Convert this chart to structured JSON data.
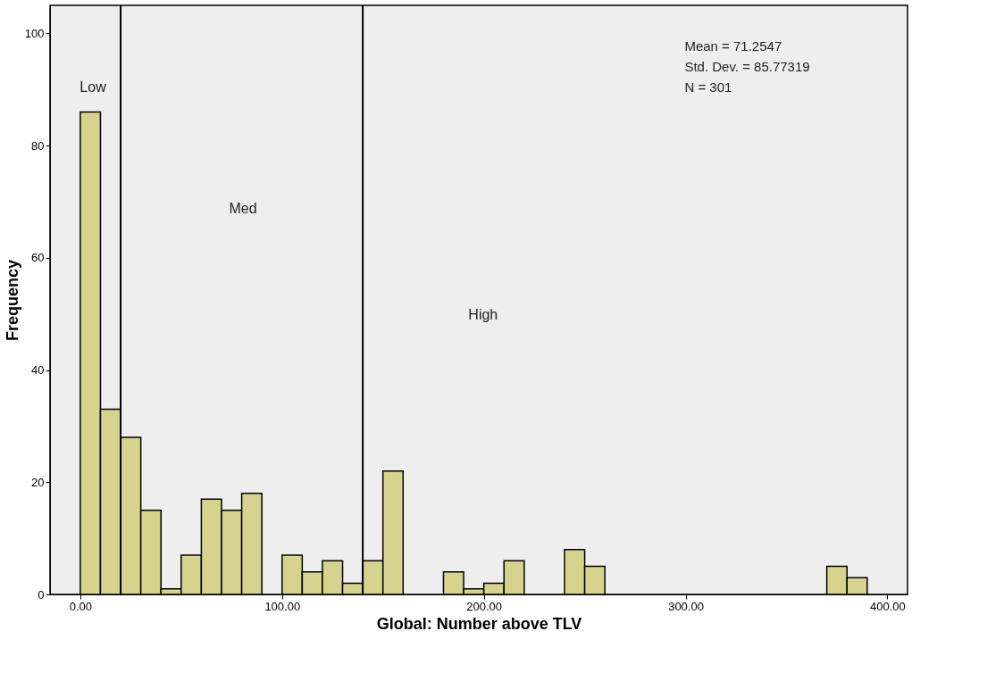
{
  "chart_data": {
    "type": "histogram",
    "xlabel": "Global: Number above TLV",
    "ylabel": "Frequency",
    "bins": [
      0,
      10,
      20,
      30,
      40,
      50,
      60,
      70,
      80,
      90,
      100,
      110,
      120,
      130,
      140,
      150,
      160,
      170,
      180,
      190,
      200,
      210,
      220,
      230,
      240,
      250,
      260,
      270,
      280,
      290,
      300,
      310,
      320,
      330,
      340,
      350,
      360,
      370,
      380,
      390
    ],
    "values": [
      86,
      33,
      28,
      15,
      1,
      7,
      17,
      15,
      18,
      0,
      7,
      4,
      6,
      2,
      6,
      22,
      0,
      0,
      4,
      1,
      2,
      6,
      0,
      0,
      8,
      5,
      0,
      0,
      0,
      0,
      0,
      0,
      0,
      0,
      0,
      0,
      0,
      5,
      3
    ],
    "color": "#d6d38f",
    "xlim": [
      -15,
      410
    ],
    "ylim": [
      0,
      105
    ],
    "xticks": [
      {
        "value": 0,
        "label": "0.00"
      },
      {
        "value": 100,
        "label": "100.00"
      },
      {
        "value": 200,
        "label": "200.00"
      },
      {
        "value": 300,
        "label": "300.00"
      },
      {
        "value": 400,
        "label": "400.00"
      }
    ],
    "yticks": [
      0,
      20,
      40,
      60,
      80,
      100
    ],
    "ref_lines": [
      {
        "axis": "x",
        "value": 20,
        "color": "#000000"
      },
      {
        "axis": "x",
        "value": 140,
        "color": "#000000"
      }
    ],
    "annotations": [
      "Low",
      "Med",
      "High",
      "Mean = 71.2547",
      "Std. Dev. = 85.77319",
      "N = 301"
    ]
  }
}
